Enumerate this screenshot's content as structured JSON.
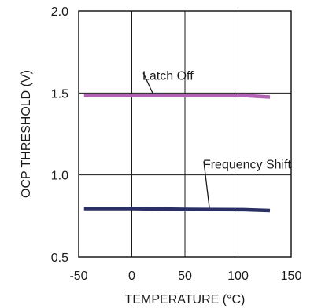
{
  "chart_data": {
    "type": "line",
    "title": "",
    "xlabel": "TEMPERATURE (°C)",
    "ylabel": "OCP THRESHOLD (V)",
    "xlim": [
      -50,
      150
    ],
    "ylim": [
      0.5,
      2.0
    ],
    "xticks": [
      -50,
      0,
      50,
      100,
      150
    ],
    "yticks": [
      0.5,
      1.0,
      1.5,
      2.0
    ],
    "xtick_labels": [
      "-50",
      "0",
      "50",
      "100",
      "150"
    ],
    "ytick_labels": [
      "0.5",
      "1.0",
      "1.5",
      "2.0"
    ],
    "grid": true,
    "legend": "none",
    "series": [
      {
        "name": "Latch Off",
        "color": "#b160b4",
        "x": [
          -45,
          0,
          50,
          105,
          130
        ],
        "y": [
          1.485,
          1.485,
          1.485,
          1.485,
          1.475
        ]
      },
      {
        "name": "Frequency Shift",
        "color": "#2a2f66",
        "x": [
          -45,
          0,
          50,
          105,
          130
        ],
        "y": [
          0.795,
          0.795,
          0.79,
          0.788,
          0.783
        ]
      }
    ],
    "annotations": [
      {
        "text": "Latch Off",
        "x": 10,
        "y": 1.58,
        "arrow_to": [
          20,
          1.485
        ]
      },
      {
        "text": "Frequency Shift",
        "x": 67,
        "y": 1.04,
        "arrow_to": [
          73,
          0.79
        ]
      }
    ]
  }
}
